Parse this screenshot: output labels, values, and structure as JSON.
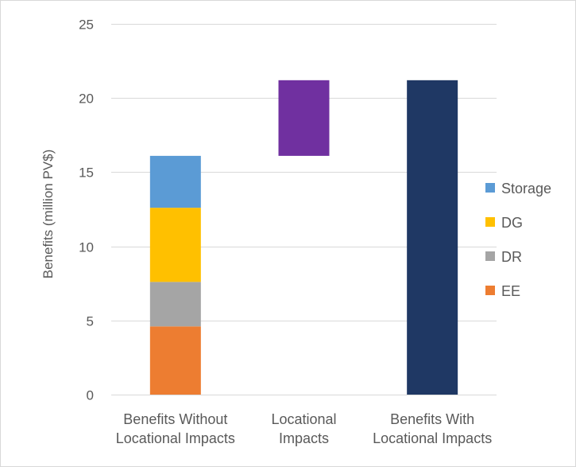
{
  "chart_data": {
    "type": "bar",
    "stacked": true,
    "waterfall": true,
    "title": "",
    "xlabel": "",
    "ylabel": "Benefits (million PV$)",
    "ylim": [
      0,
      25
    ],
    "yticks": [
      0,
      5,
      10,
      15,
      20,
      25
    ],
    "grid": true,
    "legend_position": "right",
    "categories": [
      [
        "Benefits Without",
        "Locational Impacts"
      ],
      [
        "Locational",
        "Impacts"
      ],
      [
        "Benefits With",
        "Locational Impacts"
      ]
    ],
    "segments": [
      {
        "category_index": 0,
        "series": "EE",
        "base": 0,
        "value": 4.6,
        "color": "#ed7d31"
      },
      {
        "category_index": 0,
        "series": "DR",
        "base": 4.6,
        "value": 3.0,
        "color": "#a5a5a5"
      },
      {
        "category_index": 0,
        "series": "DG",
        "base": 7.6,
        "value": 5.0,
        "color": "#ffc000"
      },
      {
        "category_index": 0,
        "series": "Storage",
        "base": 12.6,
        "value": 3.5,
        "color": "#5b9bd5"
      },
      {
        "category_index": 1,
        "series": "",
        "base": 16.1,
        "value": 5.1,
        "color": "#7030a0"
      },
      {
        "category_index": 2,
        "series": "",
        "base": 0,
        "value": 21.2,
        "color": "#1f3864"
      }
    ],
    "legend": [
      {
        "name": "Storage",
        "color": "#5b9bd5"
      },
      {
        "name": "DG",
        "color": "#ffc000"
      },
      {
        "name": "DR",
        "color": "#a5a5a5"
      },
      {
        "name": "EE",
        "color": "#ed7d31"
      }
    ]
  }
}
